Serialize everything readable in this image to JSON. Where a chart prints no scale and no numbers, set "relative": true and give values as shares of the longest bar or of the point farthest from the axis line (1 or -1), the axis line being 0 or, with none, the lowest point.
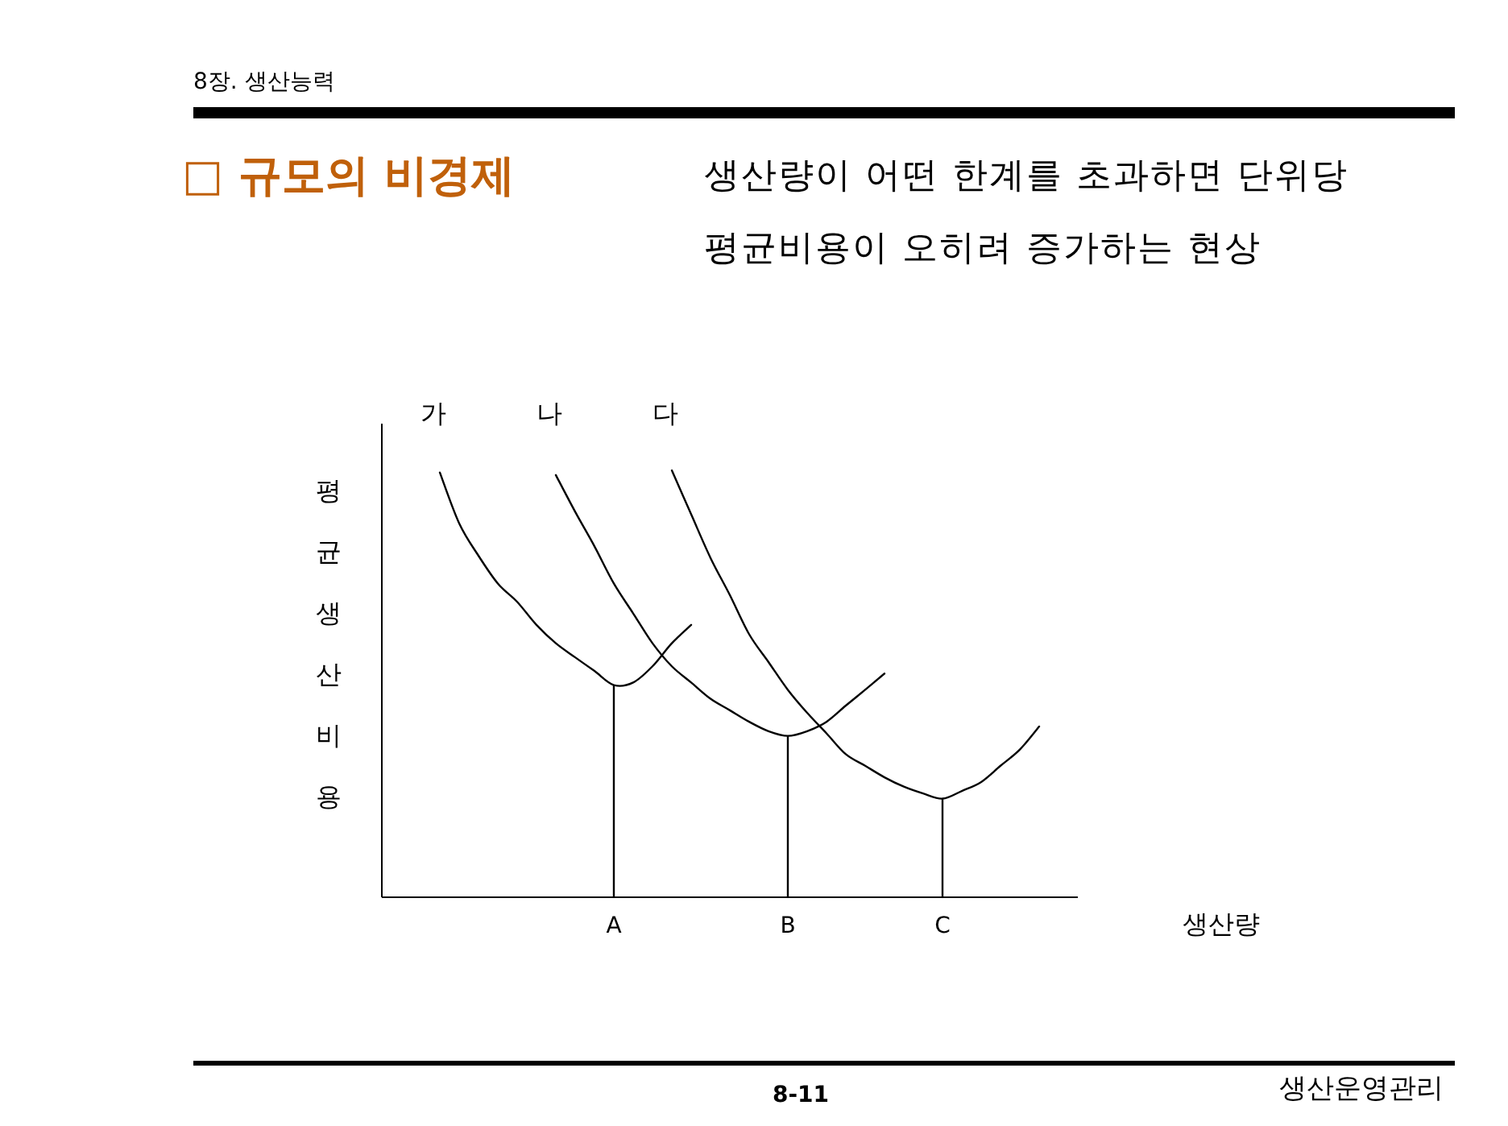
{
  "chart_data": {
    "type": "line",
    "title": "□ 규모의 비경제",
    "subtitle": "생산량이 어떤 한계를 초과하면 단위당 평균비용이 오히려 증가하는 현상",
    "xlabel": "생산량",
    "ylabel": "평균생산비용",
    "relative": true,
    "categories": [
      null,
      null,
      null,
      null,
      null,
      null,
      null,
      null,
      null,
      null,
      null,
      null,
      "A",
      null,
      null,
      null,
      null,
      null,
      null,
      null,
      null,
      "B",
      null,
      null,
      null,
      null,
      null,
      null,
      null,
      "C",
      null,
      null,
      null,
      null,
      null,
      null,
      null
    ],
    "series": [
      {
        "name": "가",
        "color": "#000000",
        "values": [
          null,
          null,
          null,
          0.995,
          0.876,
          0.8,
          0.735,
          0.692,
          0.638,
          0.595,
          0.562,
          0.53,
          0.497,
          0.503,
          0.541,
          0.595,
          0.638,
          null,
          null,
          null,
          null,
          null,
          null,
          null,
          null,
          null,
          null,
          null,
          null,
          null,
          null,
          null,
          null,
          null,
          null,
          null,
          null
        ]
      },
      {
        "name": "나",
        "color": "#000000",
        "values": [
          null,
          null,
          null,
          null,
          null,
          null,
          null,
          null,
          null,
          0.989,
          0.903,
          0.822,
          0.735,
          0.665,
          0.595,
          0.541,
          0.503,
          0.465,
          0.438,
          0.411,
          0.389,
          0.378,
          0.389,
          0.411,
          0.449,
          0.486,
          0.524,
          null,
          null,
          null,
          null,
          null,
          null,
          null,
          null,
          null,
          null
        ]
      },
      {
        "name": "다",
        "color": "#000000",
        "values": [
          null,
          null,
          null,
          null,
          null,
          null,
          null,
          null,
          null,
          null,
          null,
          null,
          null,
          null,
          null,
          1,
          0.897,
          0.795,
          0.708,
          0.616,
          0.551,
          0.486,
          0.432,
          0.384,
          0.335,
          0.308,
          0.281,
          0.259,
          0.243,
          0.231,
          0.249,
          0.27,
          0.308,
          0.346,
          0.4,
          null,
          null
        ]
      },
      {
        "type": "bar",
        "color": "#000000",
        "values": [
          null,
          null,
          null,
          null,
          null,
          null,
          null,
          null,
          null,
          null,
          null,
          null,
          0.497,
          null,
          null,
          null,
          null,
          null,
          null,
          null,
          null,
          0.378,
          null,
          null,
          null,
          null,
          null,
          null,
          null,
          0.231,
          null,
          null,
          null,
          null,
          null,
          null,
          null
        ]
      }
    ],
    "annotations": [
      "8장. 생산능력",
      "8-11",
      "생산운영관리"
    ]
  }
}
